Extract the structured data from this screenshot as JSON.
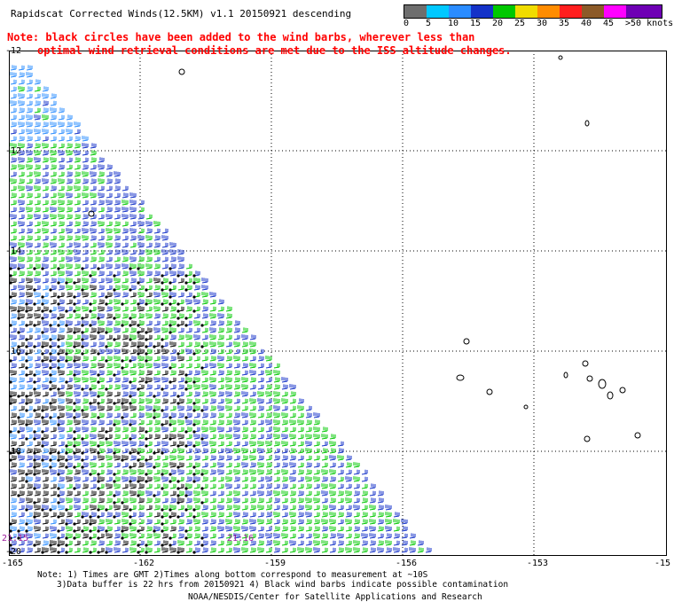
{
  "title": "Rapidscat Corrected Winds(12.5KM) v1.1 20150921 descending",
  "note_line1": "Note: black circles have been added to the wind barbs, wherever less than",
  "note_line2": "optimal wind retrieval conditions are met due to the ISS altitude changes.",
  "legend": {
    "labels": [
      "0",
      "5",
      "10",
      "15",
      "20",
      "25",
      "30",
      "35",
      "40",
      "45",
      ">50 knots"
    ],
    "colors": [
      "#6e6e6e",
      "#00c8ff",
      "#2a8cff",
      "#1432c8",
      "#00c800",
      "#f0dc00",
      "#ff8c00",
      "#ff1e1e",
      "#8c5a28",
      "#ff00ff",
      "#6e00b4"
    ]
  },
  "lon_labels": [
    "-165",
    "-162",
    "-159",
    "-156",
    "-153",
    "-15"
  ],
  "lat_labels": [
    "-12",
    "-12",
    "-14",
    "-16",
    "-18",
    "-20"
  ],
  "time_labels": [
    "21:15",
    "21:16"
  ],
  "footer": {
    "line1": "Note: 1) Times are GMT 2)Times along bottom correspond to measurement at ~10S",
    "line2": "3)Data buffer is 22 hrs from 20150921 4) Black wind barbs indicate possible contamination",
    "line3": "NOAA/NESDIS/Center for Satellite Applications and Research"
  },
  "map_colors": {
    "light_blue": "#2a8cff",
    "blue": "#1432c8",
    "green": "#00c800",
    "black": "#000000",
    "grid": "#000000"
  }
}
